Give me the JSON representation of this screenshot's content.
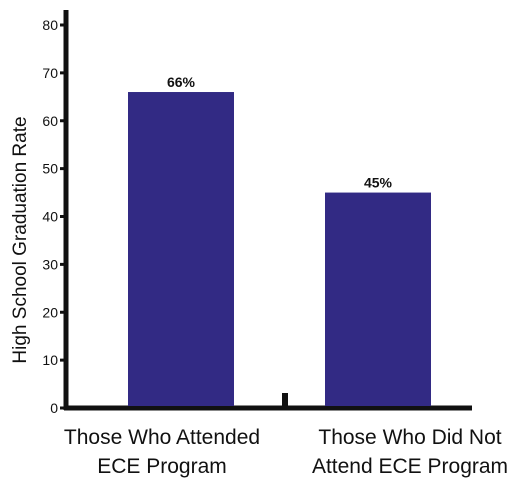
{
  "chart_data": {
    "type": "bar",
    "categories": [
      "Those Who Attended ECE Program",
      "Those Who Did Not Attend ECE Program"
    ],
    "category_lines": [
      [
        "Those Who Attended",
        "ECE Program"
      ],
      [
        "Those Who Did Not",
        "Attend ECE Program"
      ]
    ],
    "values": [
      66,
      45
    ],
    "data_labels": [
      "66%",
      "45%"
    ],
    "ylabel": "High School Graduation Rate",
    "xlabel": "",
    "ylim": [
      0,
      80
    ],
    "yticks": [
      0,
      10,
      20,
      30,
      40,
      50,
      60,
      70,
      80
    ],
    "grid": false,
    "bar_color": "#322a84",
    "axis_color": "#111111"
  }
}
